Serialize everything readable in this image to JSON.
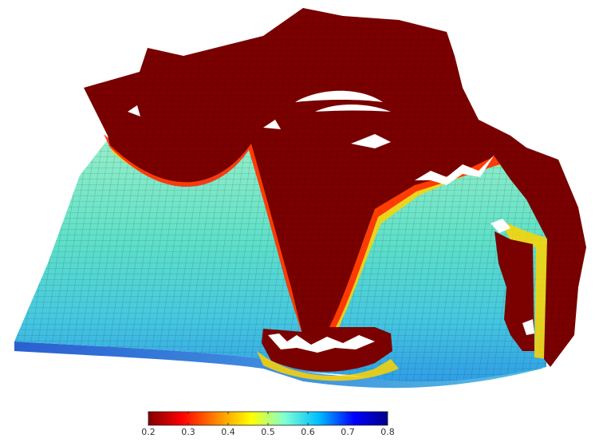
{
  "chart_data": {
    "type": "heatmap",
    "description_kind": "3d-surface-mesh-colormap",
    "colormap": "jet-reversed",
    "color_range": [
      0.2,
      0.8
    ],
    "colorbar": {
      "orientation": "horizontal",
      "placement": "bottom",
      "ticks": [
        "0.2",
        "0.3",
        "0.4",
        "0.5",
        "0.6",
        "0.7",
        "0.8"
      ],
      "stops": [
        "#800000",
        "#ff0000",
        "#ff8c00",
        "#ffff00",
        "#7fffd4",
        "#00bfff",
        "#0000ff",
        "#00008b"
      ]
    },
    "region_colors": {
      "saturated_low": "#7b0000",
      "front": "#ff2a00",
      "front_outer": "#ffd400",
      "mid": "#5ee0c8",
      "high": "#38b4e8",
      "base": "#2a6ec8"
    }
  }
}
